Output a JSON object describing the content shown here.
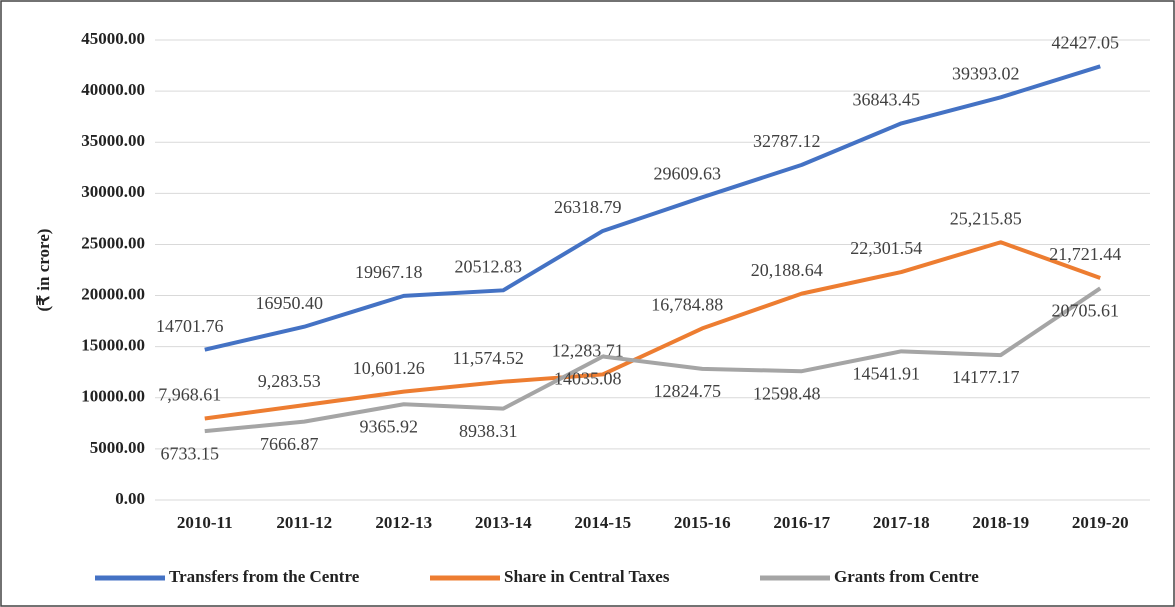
{
  "chart_data": {
    "type": "line",
    "y_label": "(₹ in crore)",
    "categories": [
      "2010-11",
      "2011-12",
      "2012-13",
      "2013-14",
      "2014-15",
      "2015-16",
      "2016-17",
      "2017-18",
      "2018-19",
      "2019-20"
    ],
    "series": [
      {
        "name": "Transfers from the Centre",
        "color": "#4472c4",
        "values": [
          14701.76,
          16950.4,
          19967.18,
          20512.83,
          26318.79,
          29609.63,
          32787.12,
          36843.45,
          39393.02,
          42427.05
        ],
        "value_labels": [
          "14701.76",
          "16950.40",
          "19967.18",
          "20512.83",
          "26318.79",
          "29609.63",
          "32787.12",
          "36843.45",
          "39393.02",
          "42427.05"
        ]
      },
      {
        "name": "Share in Central Taxes",
        "color": "#ed7d31",
        "values": [
          7968.61,
          9283.53,
          10601.26,
          11574.52,
          12283.71,
          16784.88,
          20188.64,
          22301.54,
          25215.85,
          21721.44
        ],
        "value_labels": [
          "7,968.61",
          "9,283.53",
          "10,601.26",
          "11,574.52",
          "12,283.71",
          "16,784.88",
          "20,188.64",
          "22,301.54",
          "25,215.85",
          "21,721.44"
        ]
      },
      {
        "name": "Grants from Centre",
        "color": "#a5a5a5",
        "values": [
          6733.15,
          7666.87,
          9365.92,
          8938.31,
          14035.08,
          12824.75,
          12598.48,
          14541.91,
          14177.17,
          20705.61
        ],
        "value_labels": [
          "6733.15",
          "7666.87",
          "9365.92",
          "8938.31",
          "14035.08",
          "12824.75",
          "12598.48",
          "14541.91",
          "14177.17",
          "20705.61"
        ]
      }
    ],
    "ylim": [
      0,
      45000
    ],
    "yticks": [
      {
        "value": 0,
        "label": "0.00"
      },
      {
        "value": 5000,
        "label": "5000.00"
      },
      {
        "value": 10000,
        "label": "10000.00"
      },
      {
        "value": 15000,
        "label": "15000.00"
      },
      {
        "value": 20000,
        "label": "20000.00"
      },
      {
        "value": 25000,
        "label": "25000.00"
      },
      {
        "value": 30000,
        "label": "30000.00"
      },
      {
        "value": 35000,
        "label": "35000.00"
      },
      {
        "value": 40000,
        "label": "40000.00"
      },
      {
        "value": 45000,
        "label": "45000.00"
      }
    ],
    "grid": true
  }
}
